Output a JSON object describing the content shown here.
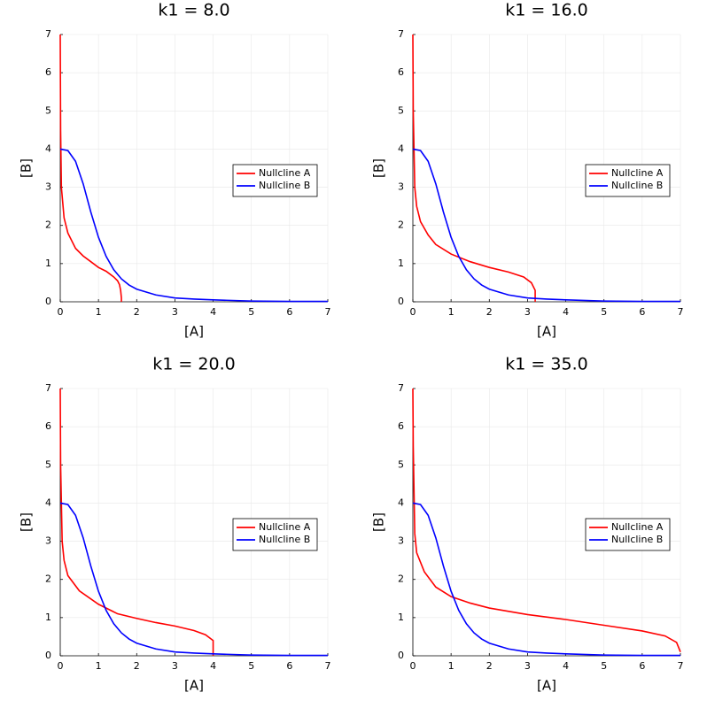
{
  "chart_data": [
    {
      "type": "line",
      "title": "k1 = 8.0",
      "xlabel": "[A]",
      "ylabel": "[B]",
      "xlim": [
        0,
        7
      ],
      "ylim": [
        0,
        7
      ],
      "xticks": [
        0,
        1,
        2,
        3,
        4,
        5,
        6,
        7
      ],
      "yticks": [
        0,
        1,
        2,
        3,
        4,
        5,
        6,
        7
      ],
      "grid": true,
      "legend": "right",
      "series": [
        {
          "name": "Nullcline A",
          "color": "#ff0000",
          "x": [
            0,
            0.01,
            0.03,
            0.1,
            0.2,
            0.4,
            0.6,
            0.8,
            1.0,
            1.2,
            1.4,
            1.5,
            1.55,
            1.58,
            1.6,
            1.6
          ],
          "values": [
            7,
            4.5,
            3,
            2.2,
            1.8,
            1.4,
            1.2,
            1.05,
            0.9,
            0.8,
            0.65,
            0.55,
            0.45,
            0.3,
            0.1,
            0
          ]
        },
        {
          "name": "Nullcline B",
          "color": "#0000ff",
          "x": [
            0,
            0.2,
            0.4,
            0.6,
            0.8,
            1.0,
            1.2,
            1.4,
            1.6,
            1.8,
            2.0,
            2.5,
            3,
            3.5,
            4,
            5,
            6,
            7
          ],
          "values": [
            4,
            3.96,
            3.68,
            3.09,
            2.35,
            1.69,
            1.19,
            0.84,
            0.6,
            0.44,
            0.33,
            0.18,
            0.1,
            0.07,
            0.05,
            0.02,
            0.01,
            0.01
          ]
        }
      ]
    },
    {
      "type": "line",
      "title": "k1 = 16.0",
      "xlabel": "[A]",
      "ylabel": "[B]",
      "xlim": [
        0,
        7
      ],
      "ylim": [
        0,
        7
      ],
      "xticks": [
        0,
        1,
        2,
        3,
        4,
        5,
        6,
        7
      ],
      "yticks": [
        0,
        1,
        2,
        3,
        4,
        5,
        6,
        7
      ],
      "grid": true,
      "legend": "right",
      "series": [
        {
          "name": "Nullcline A",
          "color": "#ff0000",
          "x": [
            0,
            0.01,
            0.05,
            0.1,
            0.2,
            0.4,
            0.6,
            1,
            1.5,
            2,
            2.5,
            2.9,
            3.1,
            3.2,
            3.2
          ],
          "values": [
            7,
            5,
            3,
            2.5,
            2.1,
            1.75,
            1.5,
            1.25,
            1.05,
            0.9,
            0.78,
            0.65,
            0.5,
            0.3,
            0
          ]
        },
        {
          "name": "Nullcline B",
          "color": "#0000ff",
          "x": [
            0,
            0.2,
            0.4,
            0.6,
            0.8,
            1.0,
            1.2,
            1.4,
            1.6,
            1.8,
            2.0,
            2.5,
            3,
            3.5,
            4,
            5,
            6,
            7
          ],
          "values": [
            4,
            3.96,
            3.68,
            3.09,
            2.35,
            1.69,
            1.19,
            0.84,
            0.6,
            0.44,
            0.33,
            0.18,
            0.1,
            0.07,
            0.05,
            0.02,
            0.01,
            0.01
          ]
        }
      ]
    },
    {
      "type": "line",
      "title": "k1 = 20.0",
      "xlabel": "[A]",
      "ylabel": "[B]",
      "xlim": [
        0,
        7
      ],
      "ylim": [
        0,
        7
      ],
      "xticks": [
        0,
        1,
        2,
        3,
        4,
        5,
        6,
        7
      ],
      "yticks": [
        0,
        1,
        2,
        3,
        4,
        5,
        6,
        7
      ],
      "grid": true,
      "legend": "right",
      "series": [
        {
          "name": "Nullcline A",
          "color": "#ff0000",
          "x": [
            0,
            0.01,
            0.05,
            0.1,
            0.2,
            0.5,
            1,
            1.5,
            2,
            2.5,
            3,
            3.5,
            3.8,
            4,
            4
          ],
          "values": [
            7,
            5,
            3,
            2.5,
            2.1,
            1.7,
            1.35,
            1.1,
            0.98,
            0.87,
            0.78,
            0.66,
            0.55,
            0.4,
            0
          ]
        },
        {
          "name": "Nullcline B",
          "color": "#0000ff",
          "x": [
            0,
            0.2,
            0.4,
            0.6,
            0.8,
            1.0,
            1.2,
            1.4,
            1.6,
            1.8,
            2.0,
            2.5,
            3,
            3.5,
            4,
            5,
            6,
            7
          ],
          "values": [
            4,
            3.96,
            3.68,
            3.09,
            2.35,
            1.69,
            1.19,
            0.84,
            0.6,
            0.44,
            0.33,
            0.18,
            0.1,
            0.07,
            0.05,
            0.02,
            0.01,
            0.01
          ]
        }
      ]
    },
    {
      "type": "line",
      "title": "k1 = 35.0",
      "xlabel": "[A]",
      "ylabel": "[B]",
      "xlim": [
        0,
        7
      ],
      "ylim": [
        0,
        7
      ],
      "xticks": [
        0,
        1,
        2,
        3,
        4,
        5,
        6,
        7
      ],
      "yticks": [
        0,
        1,
        2,
        3,
        4,
        5,
        6,
        7
      ],
      "grid": true,
      "legend": "right",
      "series": [
        {
          "name": "Nullcline A",
          "color": "#ff0000",
          "x": [
            0,
            0.01,
            0.05,
            0.1,
            0.3,
            0.6,
            1,
            1.5,
            2,
            3,
            4,
            5,
            6,
            6.6,
            6.9,
            7
          ],
          "values": [
            7,
            5.5,
            3.2,
            2.7,
            2.2,
            1.8,
            1.55,
            1.38,
            1.25,
            1.08,
            0.95,
            0.8,
            0.65,
            0.52,
            0.35,
            0.1
          ]
        },
        {
          "name": "Nullcline B",
          "color": "#0000ff",
          "x": [
            0,
            0.2,
            0.4,
            0.6,
            0.8,
            1.0,
            1.2,
            1.4,
            1.6,
            1.8,
            2.0,
            2.5,
            3,
            3.5,
            4,
            5,
            6,
            7
          ],
          "values": [
            4,
            3.96,
            3.68,
            3.09,
            2.35,
            1.69,
            1.19,
            0.84,
            0.6,
            0.44,
            0.33,
            0.18,
            0.1,
            0.07,
            0.05,
            0.02,
            0.01,
            0.01
          ]
        }
      ]
    }
  ]
}
